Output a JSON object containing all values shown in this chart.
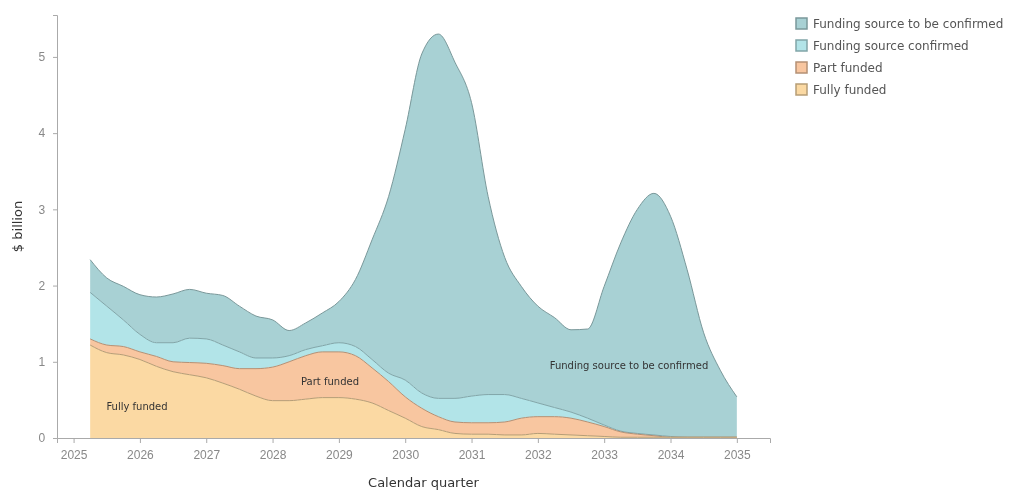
{
  "chart_data": {
    "type": "area",
    "stacked": true,
    "xlabel": "Calendar quarter",
    "ylabel": "$ billion",
    "x": [
      2025.25,
      2025.5,
      2025.75,
      2026,
      2026.25,
      2026.5,
      2026.75,
      2027,
      2027.25,
      2027.5,
      2027.75,
      2028,
      2028.25,
      2028.5,
      2028.75,
      2029,
      2029.25,
      2029.5,
      2029.75,
      2030,
      2030.25,
      2030.5,
      2030.75,
      2031,
      2031.25,
      2031.5,
      2031.75,
      2032,
      2032.25,
      2032.5,
      2032.75,
      2033,
      2033.25,
      2033.5,
      2033.75,
      2034,
      2034.25,
      2034.5,
      2034.75,
      2035
    ],
    "series": [
      {
        "name": "Fully funded",
        "color": "#fbd9a3",
        "values": [
          1.22,
          1.12,
          1.09,
          1.03,
          0.94,
          0.87,
          0.83,
          0.79,
          0.72,
          0.64,
          0.55,
          0.49,
          0.49,
          0.51,
          0.53,
          0.53,
          0.51,
          0.46,
          0.36,
          0.26,
          0.15,
          0.11,
          0.06,
          0.05,
          0.05,
          0.04,
          0.04,
          0.06,
          0.05,
          0.04,
          0.03,
          0.02,
          0.01,
          0.01,
          0.01,
          0.01,
          0.01,
          0.01,
          0.01,
          0.01
        ]
      },
      {
        "name": "Part funded",
        "color": "#f8c6a0",
        "values": [
          0.08,
          0.1,
          0.11,
          0.1,
          0.13,
          0.13,
          0.16,
          0.19,
          0.23,
          0.27,
          0.36,
          0.44,
          0.51,
          0.57,
          0.6,
          0.6,
          0.57,
          0.46,
          0.38,
          0.28,
          0.24,
          0.17,
          0.15,
          0.15,
          0.15,
          0.17,
          0.22,
          0.22,
          0.23,
          0.22,
          0.18,
          0.13,
          0.07,
          0.04,
          0.02,
          0,
          0,
          0,
          0,
          0
        ]
      },
      {
        "name": "Funding source confirmed",
        "color": "#b2e4e8",
        "values": [
          0.61,
          0.51,
          0.35,
          0.23,
          0.18,
          0.25,
          0.32,
          0.32,
          0.27,
          0.22,
          0.14,
          0.12,
          0.08,
          0.08,
          0.08,
          0.12,
          0.12,
          0.11,
          0.11,
          0.22,
          0.2,
          0.24,
          0.31,
          0.35,
          0.37,
          0.36,
          0.26,
          0.18,
          0.12,
          0.08,
          0.05,
          0.02,
          0.01,
          0.01,
          0.01,
          0.01,
          0,
          0,
          0,
          0
        ]
      },
      {
        "name": "Funding source to be confirmed",
        "color": "#a8d1d4",
        "values": [
          0.43,
          0.37,
          0.44,
          0.52,
          0.6,
          0.64,
          0.64,
          0.6,
          0.65,
          0.6,
          0.55,
          0.5,
          0.33,
          0.35,
          0.43,
          0.54,
          0.88,
          1.57,
          2.32,
          3.29,
          4.45,
          4.78,
          4.41,
          3.85,
          2.6,
          1.8,
          1.47,
          1.27,
          1.18,
          1.08,
          1.17,
          1.82,
          2.47,
          2.94,
          3.17,
          2.89,
          2.2,
          1.37,
          0.88,
          0.53
        ]
      }
    ],
    "xlim": [
      2024.75,
      2035.5
    ],
    "xticks": [
      2025,
      2026,
      2027,
      2028,
      2029,
      2030,
      2031,
      2032,
      2033,
      2034,
      2035
    ],
    "ylim": [
      0,
      5.55
    ],
    "yticks": [
      0,
      1,
      2,
      3,
      4,
      5
    ],
    "legend": "top right",
    "annotations": [
      "Fully funded",
      "Part funded",
      "Funding source to be confirmed"
    ]
  }
}
